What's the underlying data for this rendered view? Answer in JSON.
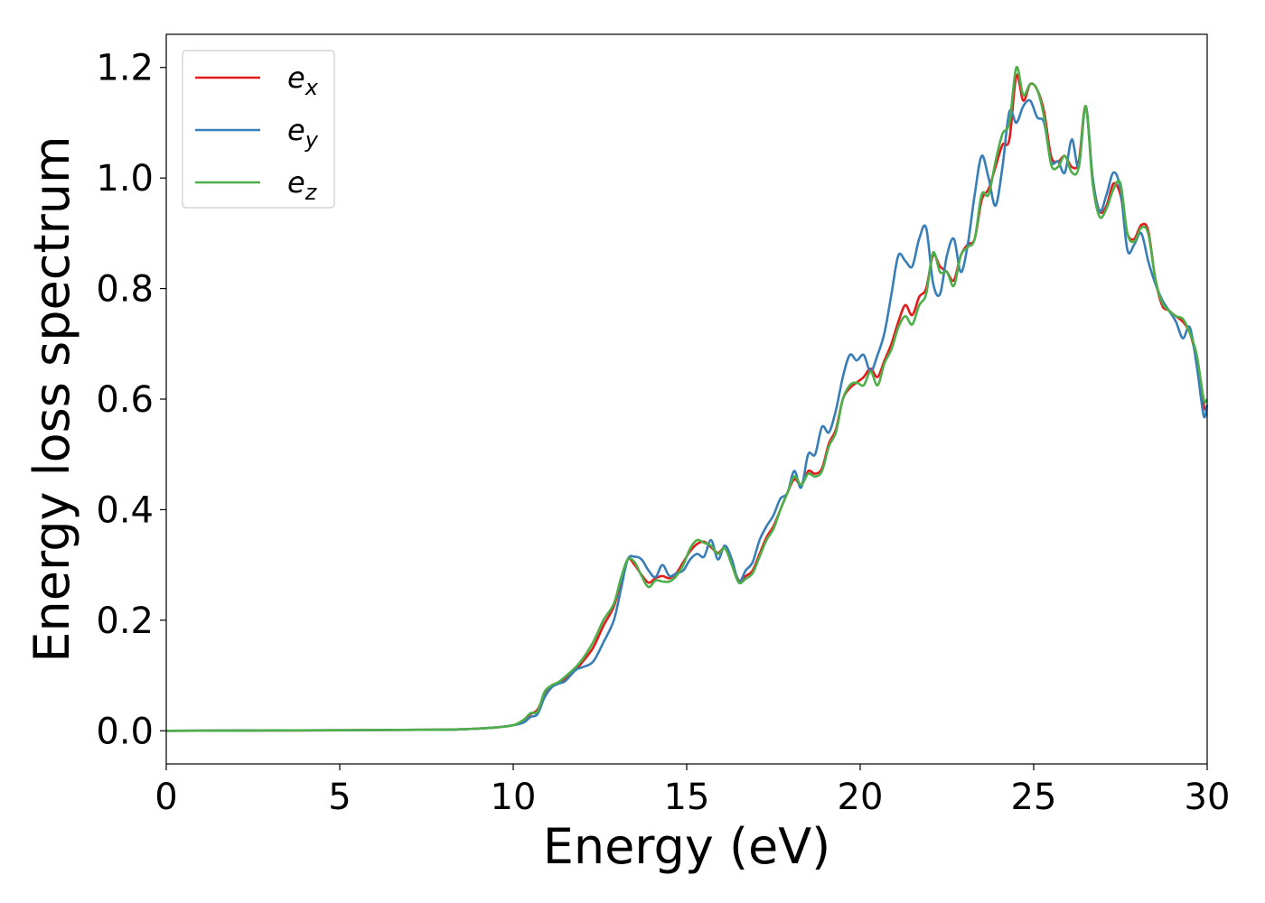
{
  "chart_data": {
    "type": "line",
    "xlabel": "Energy (eV)",
    "ylabel": "Energy loss spectrum",
    "xlim": [
      0,
      30
    ],
    "ylim": [
      -0.06,
      1.26
    ],
    "xticks": [
      "0",
      "5",
      "10",
      "15",
      "20",
      "25",
      "30"
    ],
    "yticks": [
      "0.0",
      "0.2",
      "0.4",
      "0.6",
      "0.8",
      "1.0",
      "1.2"
    ],
    "grid": false,
    "legend_position": "top-left",
    "series": [
      {
        "name": "e",
        "subscript": "x",
        "color": "#e41a1c",
        "x": [
          0,
          5,
          8,
          9,
          9.5,
          10,
          10.3,
          10.5,
          10.7,
          10.9,
          11.1,
          11.3,
          11.5,
          11.8,
          12.0,
          12.3,
          12.6,
          12.9,
          13.1,
          13.3,
          13.5,
          13.7,
          13.9,
          14.1,
          14.3,
          14.5,
          14.7,
          14.9,
          15.1,
          15.3,
          15.5,
          15.7,
          15.9,
          16.1,
          16.3,
          16.5,
          16.7,
          16.9,
          17.1,
          17.3,
          17.5,
          17.7,
          17.9,
          18.1,
          18.3,
          18.5,
          18.7,
          18.9,
          19.1,
          19.3,
          19.5,
          19.7,
          19.9,
          20.1,
          20.3,
          20.5,
          20.7,
          20.9,
          21.1,
          21.3,
          21.5,
          21.7,
          21.9,
          22.1,
          22.3,
          22.5,
          22.7,
          22.9,
          23.1,
          23.3,
          23.5,
          23.7,
          23.9,
          24.1,
          24.3,
          24.5,
          24.7,
          24.9,
          25.1,
          25.3,
          25.5,
          25.7,
          25.9,
          26.1,
          26.3,
          26.5,
          26.7,
          26.9,
          27.1,
          27.3,
          27.5,
          27.7,
          27.9,
          28.1,
          28.3,
          28.5,
          28.7,
          28.9,
          29.1,
          29.3,
          29.5,
          29.7,
          29.9,
          30
        ],
        "y": [
          0,
          0.001,
          0.002,
          0.004,
          0.006,
          0.01,
          0.018,
          0.03,
          0.038,
          0.065,
          0.08,
          0.086,
          0.095,
          0.11,
          0.125,
          0.15,
          0.19,
          0.225,
          0.27,
          0.31,
          0.3,
          0.282,
          0.268,
          0.276,
          0.28,
          0.276,
          0.285,
          0.305,
          0.325,
          0.338,
          0.342,
          0.332,
          0.322,
          0.33,
          0.305,
          0.272,
          0.28,
          0.29,
          0.32,
          0.35,
          0.37,
          0.4,
          0.43,
          0.455,
          0.445,
          0.47,
          0.465,
          0.475,
          0.52,
          0.545,
          0.6,
          0.62,
          0.63,
          0.64,
          0.655,
          0.64,
          0.67,
          0.7,
          0.74,
          0.77,
          0.752,
          0.785,
          0.8,
          0.86,
          0.84,
          0.83,
          0.815,
          0.86,
          0.88,
          0.89,
          0.96,
          0.98,
          1.02,
          1.06,
          1.07,
          1.185,
          1.14,
          1.17,
          1.16,
          1.12,
          1.04,
          1.03,
          1.04,
          1.02,
          1.03,
          1.13,
          1.0,
          0.94,
          0.95,
          0.99,
          0.97,
          0.9,
          0.89,
          0.915,
          0.905,
          0.82,
          0.77,
          0.76,
          0.75,
          0.74,
          0.72,
          0.67,
          0.59,
          0.58
        ]
      },
      {
        "name": "e",
        "subscript": "y",
        "color": "#377eb8",
        "x": [
          0,
          5,
          8,
          9,
          9.5,
          10,
          10.3,
          10.5,
          10.7,
          10.9,
          11.1,
          11.3,
          11.5,
          11.8,
          12.0,
          12.3,
          12.6,
          12.9,
          13.1,
          13.3,
          13.5,
          13.7,
          13.9,
          14.1,
          14.3,
          14.5,
          14.7,
          14.9,
          15.1,
          15.3,
          15.5,
          15.7,
          15.9,
          16.1,
          16.3,
          16.5,
          16.7,
          16.9,
          17.1,
          17.3,
          17.5,
          17.7,
          17.9,
          18.1,
          18.3,
          18.5,
          18.7,
          18.9,
          19.1,
          19.3,
          19.5,
          19.7,
          19.9,
          20.1,
          20.3,
          20.5,
          20.7,
          20.9,
          21.1,
          21.3,
          21.5,
          21.7,
          21.9,
          22.1,
          22.3,
          22.5,
          22.7,
          22.9,
          23.1,
          23.3,
          23.5,
          23.7,
          23.9,
          24.1,
          24.3,
          24.5,
          24.7,
          24.9,
          25.1,
          25.3,
          25.5,
          25.7,
          25.9,
          26.1,
          26.3,
          26.5,
          26.7,
          26.9,
          27.1,
          27.3,
          27.5,
          27.7,
          27.9,
          28.1,
          28.3,
          28.5,
          28.7,
          28.9,
          29.1,
          29.3,
          29.5,
          29.7,
          29.9,
          30
        ],
        "y": [
          0,
          0.001,
          0.002,
          0.004,
          0.006,
          0.01,
          0.015,
          0.025,
          0.03,
          0.06,
          0.078,
          0.085,
          0.09,
          0.11,
          0.115,
          0.125,
          0.16,
          0.2,
          0.255,
          0.31,
          0.315,
          0.31,
          0.29,
          0.278,
          0.3,
          0.28,
          0.285,
          0.29,
          0.31,
          0.32,
          0.315,
          0.345,
          0.31,
          0.335,
          0.31,
          0.27,
          0.29,
          0.305,
          0.345,
          0.37,
          0.39,
          0.42,
          0.43,
          0.47,
          0.44,
          0.5,
          0.5,
          0.55,
          0.54,
          0.58,
          0.64,
          0.68,
          0.67,
          0.68,
          0.65,
          0.68,
          0.72,
          0.79,
          0.86,
          0.85,
          0.84,
          0.89,
          0.91,
          0.81,
          0.79,
          0.86,
          0.89,
          0.83,
          0.88,
          0.97,
          1.04,
          1.0,
          0.95,
          1.02,
          1.12,
          1.1,
          1.13,
          1.14,
          1.11,
          1.1,
          1.03,
          1.03,
          1.01,
          1.07,
          1.02,
          1.13,
          1.0,
          0.94,
          0.97,
          1.01,
          0.98,
          0.87,
          0.88,
          0.9,
          0.85,
          0.81,
          0.78,
          0.76,
          0.74,
          0.71,
          0.73,
          0.66,
          0.57,
          0.59
        ]
      },
      {
        "name": "e",
        "subscript": "z",
        "color": "#4daf4a",
        "x": [
          0,
          5,
          8,
          9,
          9.5,
          10,
          10.3,
          10.5,
          10.7,
          10.9,
          11.1,
          11.3,
          11.5,
          11.8,
          12.0,
          12.3,
          12.6,
          12.9,
          13.1,
          13.3,
          13.5,
          13.7,
          13.9,
          14.1,
          14.3,
          14.5,
          14.7,
          14.9,
          15.1,
          15.3,
          15.5,
          15.7,
          15.9,
          16.1,
          16.3,
          16.5,
          16.7,
          16.9,
          17.1,
          17.3,
          17.5,
          17.7,
          17.9,
          18.1,
          18.3,
          18.5,
          18.7,
          18.9,
          19.1,
          19.3,
          19.5,
          19.7,
          19.9,
          20.1,
          20.3,
          20.5,
          20.7,
          20.9,
          21.1,
          21.3,
          21.5,
          21.7,
          21.9,
          22.1,
          22.3,
          22.5,
          22.7,
          22.9,
          23.1,
          23.3,
          23.5,
          23.7,
          23.9,
          24.1,
          24.3,
          24.5,
          24.7,
          24.9,
          25.1,
          25.3,
          25.5,
          25.7,
          25.9,
          26.1,
          26.3,
          26.5,
          26.7,
          26.9,
          27.1,
          27.3,
          27.5,
          27.7,
          27.9,
          28.1,
          28.3,
          28.5,
          28.7,
          28.9,
          29.1,
          29.3,
          29.5,
          29.7,
          29.9,
          30
        ],
        "y": [
          0,
          0.001,
          0.002,
          0.004,
          0.006,
          0.01,
          0.02,
          0.032,
          0.035,
          0.07,
          0.082,
          0.088,
          0.098,
          0.115,
          0.13,
          0.16,
          0.2,
          0.23,
          0.275,
          0.31,
          0.305,
          0.28,
          0.26,
          0.272,
          0.27,
          0.27,
          0.28,
          0.3,
          0.33,
          0.345,
          0.34,
          0.335,
          0.32,
          0.33,
          0.3,
          0.268,
          0.275,
          0.285,
          0.315,
          0.345,
          0.365,
          0.4,
          0.43,
          0.46,
          0.445,
          0.465,
          0.46,
          0.47,
          0.515,
          0.54,
          0.6,
          0.625,
          0.63,
          0.625,
          0.65,
          0.625,
          0.665,
          0.69,
          0.73,
          0.75,
          0.735,
          0.77,
          0.79,
          0.865,
          0.83,
          0.83,
          0.805,
          0.86,
          0.875,
          0.89,
          0.97,
          0.97,
          1.03,
          1.08,
          1.1,
          1.2,
          1.15,
          1.17,
          1.16,
          1.11,
          1.025,
          1.02,
          1.04,
          1.01,
          1.02,
          1.13,
          0.99,
          0.93,
          0.945,
          0.98,
          0.99,
          0.9,
          0.885,
          0.91,
          0.9,
          0.82,
          0.775,
          0.76,
          0.75,
          0.745,
          0.72,
          0.68,
          0.6,
          0.6
        ]
      }
    ]
  }
}
